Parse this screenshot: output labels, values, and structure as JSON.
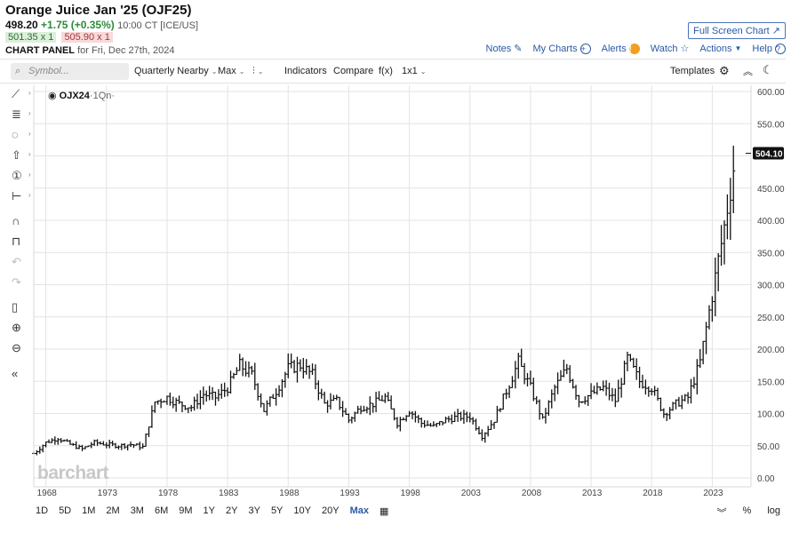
{
  "header": {
    "title": "Orange Juice Jan '25 (OJF25)",
    "last": "498.20",
    "change": "+1.75 (+0.35%)",
    "time": "10:00 CT [ICE/US]",
    "bid": "501.35 x 1",
    "ask": "505.90 x 1",
    "panel_label": "CHART PANEL",
    "panel_for": "for Fri, Dec 27th, 2024",
    "fullscreen_label": "Full Screen Chart ↗"
  },
  "actions": {
    "notes": "Notes",
    "mycharts": "My Charts",
    "alerts": "Alerts",
    "watch": "Watch",
    "actions": "Actions",
    "help": "Help"
  },
  "toolbar": {
    "search_placeholder": "Symbol...",
    "series": "Quarterly Nearby",
    "range": "Max",
    "chart_type": "⫶",
    "indicators": "Indicators",
    "compare": "Compare",
    "fx": "f(x)",
    "layout": "1x1",
    "templates": "Templates"
  },
  "legend": {
    "symbol": "OJX24",
    "interval": "·1Qn·"
  },
  "price_tag": "504.10",
  "watermark": "barchart",
  "timeframes": [
    "1D",
    "5D",
    "1M",
    "2M",
    "3M",
    "6M",
    "9M",
    "1Y",
    "2Y",
    "3Y",
    "5Y",
    "10Y",
    "20Y",
    "Max"
  ],
  "active_timeframe": "Max",
  "bottom_right": {
    "pct": "%",
    "log": "log"
  },
  "colors": {
    "accent": "#2a5aa6",
    "positive": "#2e8b3a",
    "negative": "#a33333",
    "bars": "#111111"
  },
  "chart_data": {
    "type": "ohlc",
    "title": "",
    "xlabel": "",
    "ylabel": "",
    "x_tick_labels": [
      "1968",
      "1973",
      "1978",
      "1983",
      "1988",
      "1993",
      "1998",
      "2003",
      "2008",
      "2013",
      "2018",
      "2023"
    ],
    "y_tick_labels": [
      "0.00",
      "50.00",
      "100.00",
      "150.00",
      "200.00",
      "250.00",
      "300.00",
      "350.00",
      "400.00",
      "450.00",
      "500.00",
      "550.00",
      "600.00"
    ],
    "xlim": [
      1967.0,
      2026.2
    ],
    "ylim": [
      0,
      600
    ],
    "grid": true,
    "last_price": 504.1,
    "series": [
      {
        "values_by_year": [
          [
            1967,
            38
          ],
          [
            1968,
            55
          ],
          [
            1969,
            62
          ],
          [
            1970,
            52
          ],
          [
            1971,
            45
          ],
          [
            1972,
            55
          ],
          [
            1973,
            52
          ],
          [
            1974,
            50
          ],
          [
            1975,
            52
          ],
          [
            1976,
            48
          ],
          [
            1977,
            118
          ],
          [
            1978,
            125
          ],
          [
            1979,
            115
          ],
          [
            1980,
            110
          ],
          [
            1981,
            130
          ],
          [
            1982,
            125
          ],
          [
            1983,
            140
          ],
          [
            1984,
            175
          ],
          [
            1985,
            160
          ],
          [
            1986,
            105
          ],
          [
            1987,
            135
          ],
          [
            1988,
            170
          ],
          [
            1989,
            175
          ],
          [
            1990,
            160
          ],
          [
            1991,
            115
          ],
          [
            1992,
            120
          ],
          [
            1993,
            90
          ],
          [
            1994,
            110
          ],
          [
            1995,
            115
          ],
          [
            1996,
            125
          ],
          [
            1997,
            85
          ],
          [
            1998,
            105
          ],
          [
            1999,
            85
          ],
          [
            2000,
            80
          ],
          [
            2001,
            90
          ],
          [
            2002,
            95
          ],
          [
            2003,
            95
          ],
          [
            2004,
            65
          ],
          [
            2005,
            90
          ],
          [
            2006,
            135
          ],
          [
            2007,
            180
          ],
          [
            2008,
            140
          ],
          [
            2009,
            90
          ],
          [
            2010,
            140
          ],
          [
            2011,
            170
          ],
          [
            2012,
            120
          ],
          [
            2013,
            130
          ],
          [
            2014,
            140
          ],
          [
            2015,
            120
          ],
          [
            2016,
            185
          ],
          [
            2017,
            150
          ],
          [
            2018,
            140
          ],
          [
            2019,
            100
          ],
          [
            2020,
            115
          ],
          [
            2021,
            125
          ],
          [
            2022,
            180
          ],
          [
            2023,
            285
          ],
          [
            2024,
            390
          ],
          [
            2024.9,
            500
          ]
        ]
      }
    ]
  }
}
